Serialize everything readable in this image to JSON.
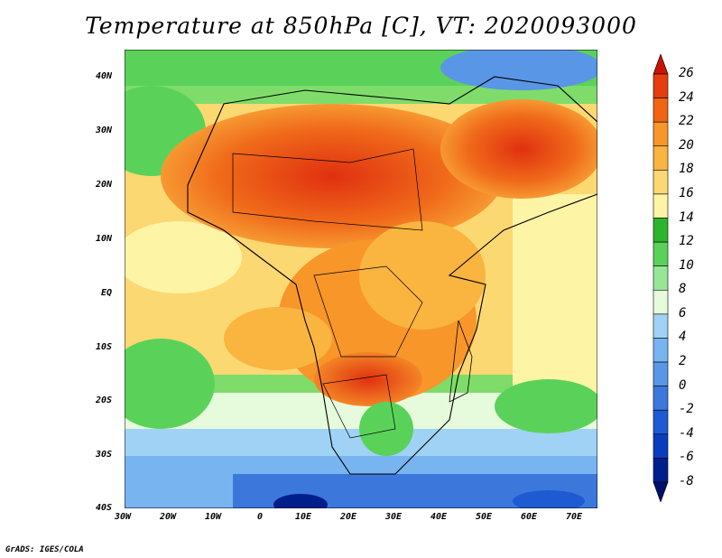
{
  "title": "Temperature at 850hPa [C], VT: 2020093000",
  "credit": "GrADS: IGES/COLA",
  "map": {
    "region": "Africa and surrounding areas",
    "lat_range": [
      "40S",
      "45N"
    ],
    "lon_range": [
      "30W",
      "75E"
    ],
    "lat_labels": [
      "40N",
      "30N",
      "20N",
      "10N",
      "EQ",
      "10S",
      "20S",
      "30S",
      "40S"
    ],
    "lon_labels": [
      "30W",
      "20W",
      "10W",
      "0",
      "10E",
      "20E",
      "30E",
      "40E",
      "50E",
      "60E",
      "70E"
    ],
    "ocean_color": "#7fdc6a",
    "hot_color": "#e63c10"
  },
  "colorbar": {
    "labels": [
      "26",
      "24",
      "22",
      "20",
      "18",
      "16",
      "14",
      "12",
      "10",
      "8",
      "6",
      "4",
      "2",
      "0",
      "-2",
      "-4",
      "-6",
      "-8"
    ],
    "colors": [
      "#c81400",
      "#e63c10",
      "#f06414",
      "#f8962a",
      "#fab440",
      "#fcd872",
      "#fef4a6",
      "#2db42d",
      "#5ad25a",
      "#96e696",
      "#e6fadc",
      "#a0d2f5",
      "#78b4f0",
      "#5a96e6",
      "#3c78dc",
      "#1e5ad2",
      "#0a3cbe",
      "#001e8c",
      "#00106a"
    ]
  }
}
